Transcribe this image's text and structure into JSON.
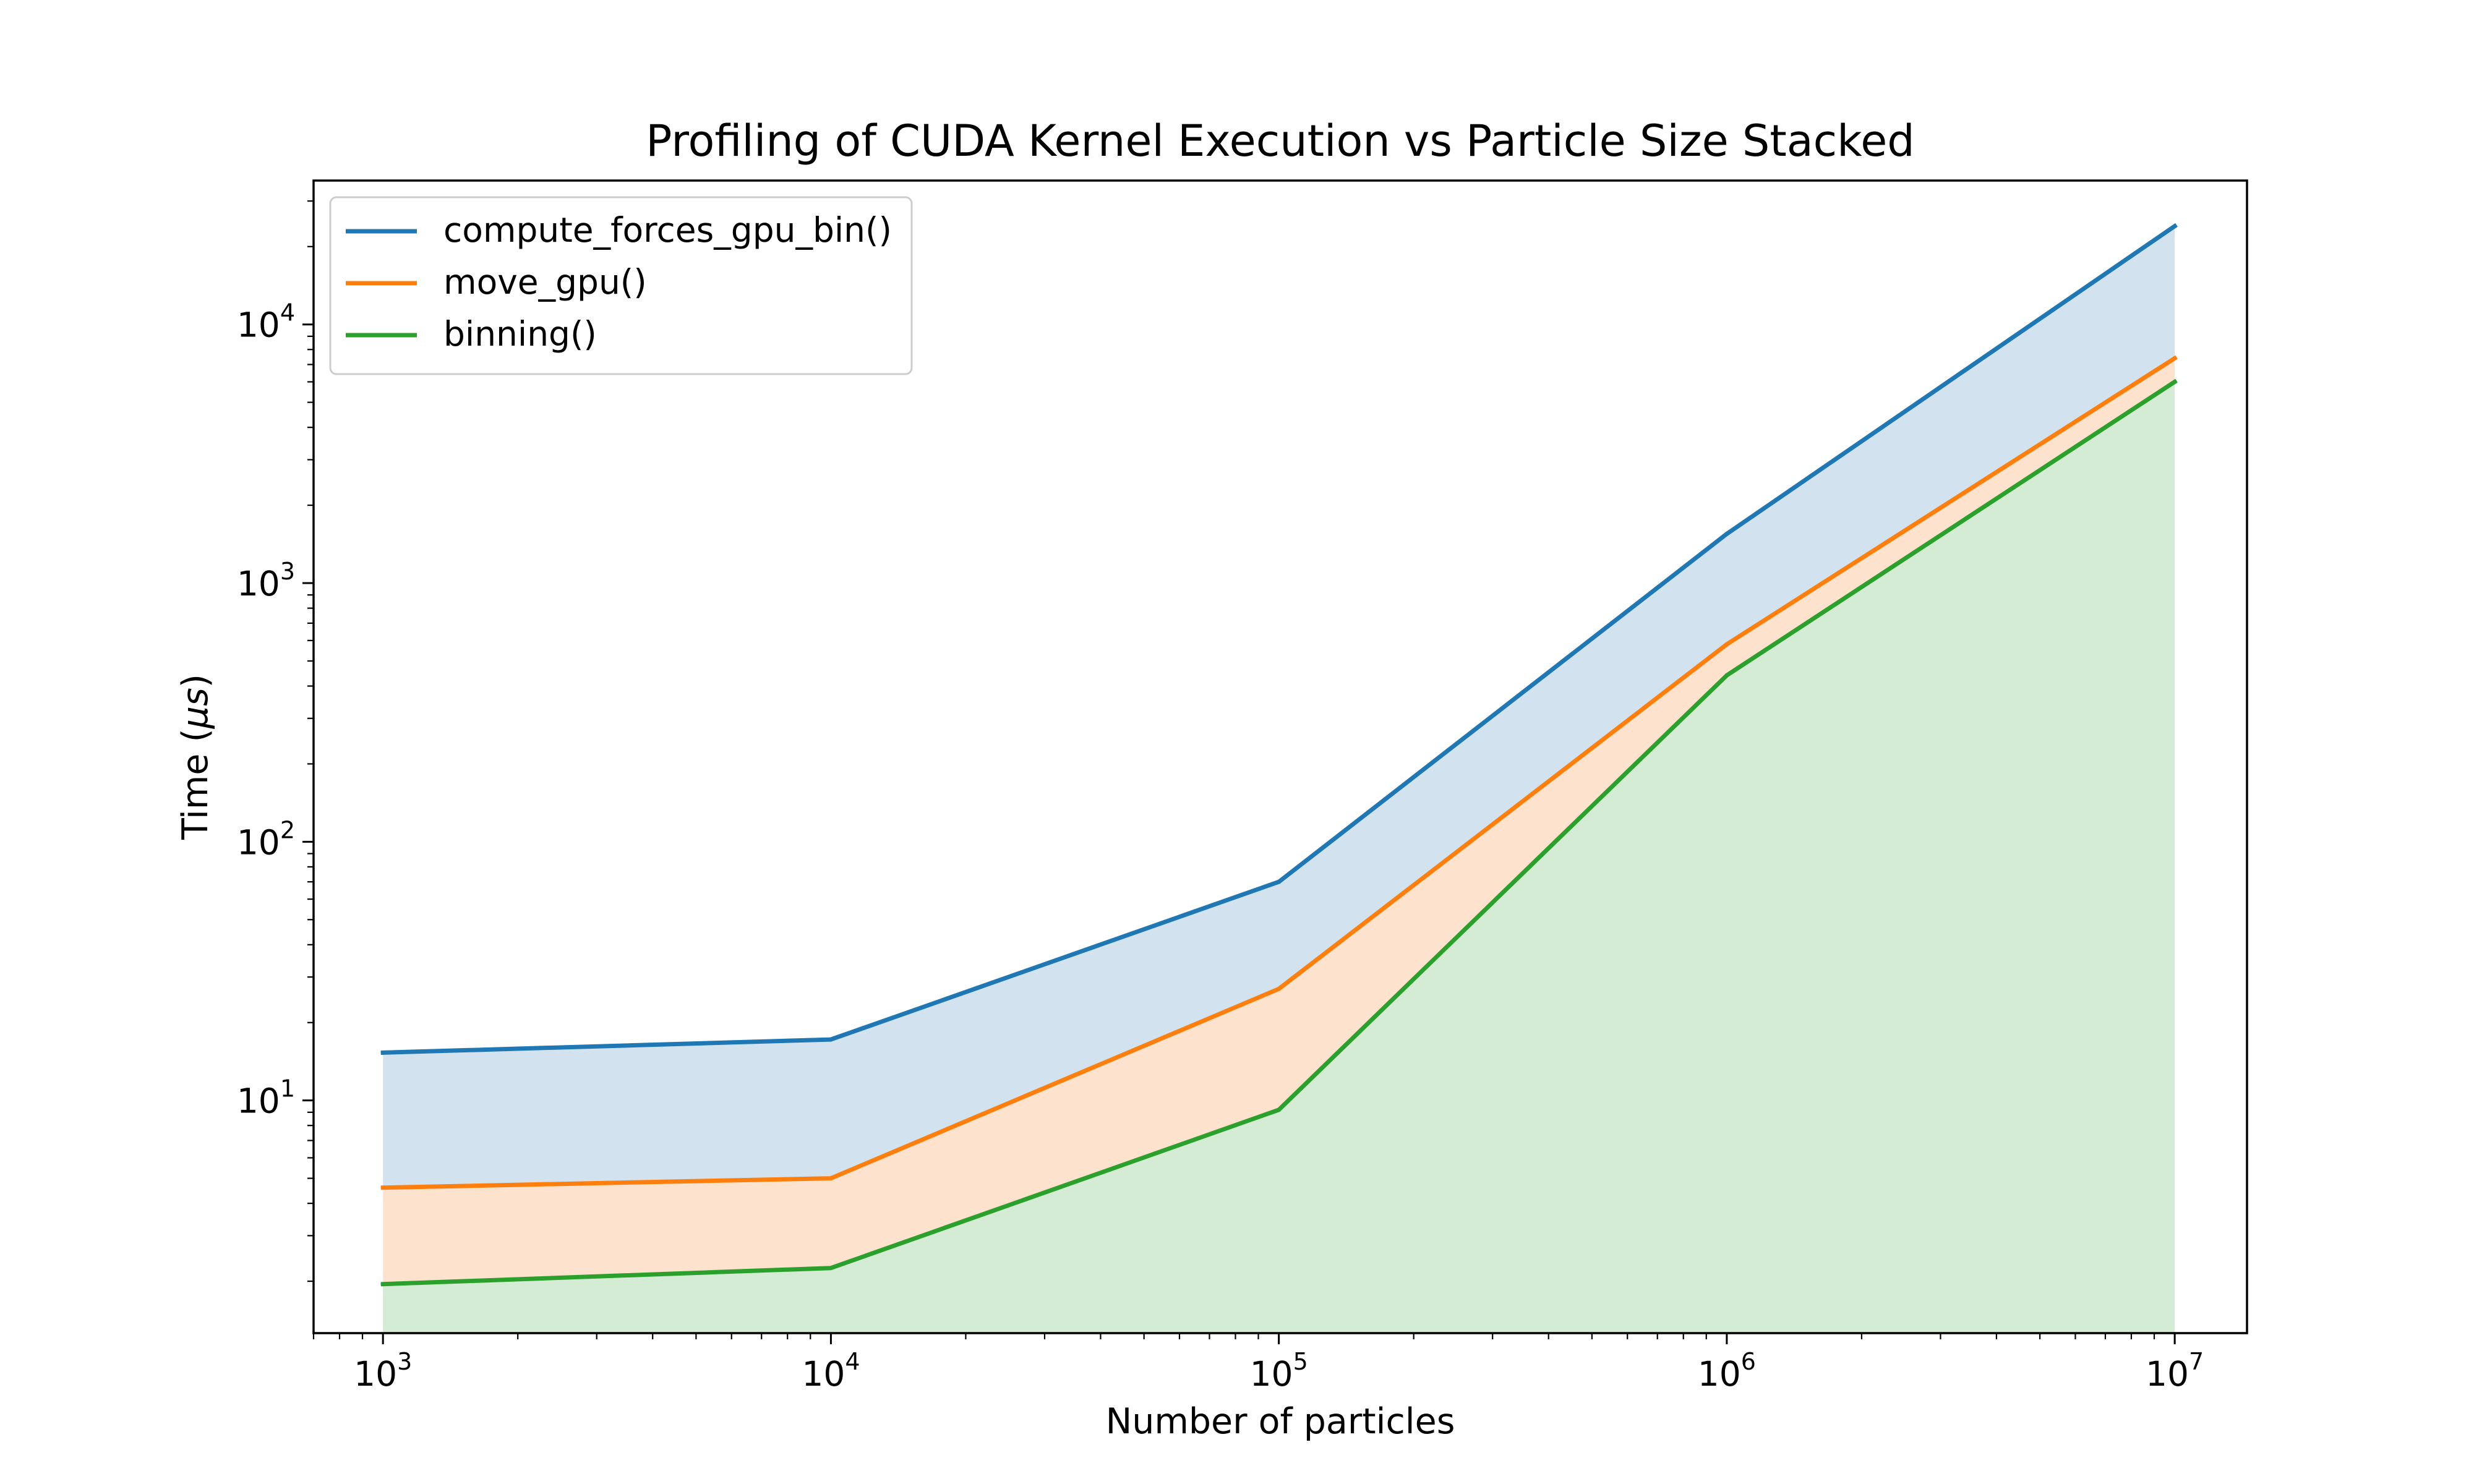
{
  "chart_data": {
    "type": "area",
    "title": "Profiling of CUDA Kernel Execution vs Particle Size Stacked",
    "xlabel": "Number of particles",
    "ylabel": "Time (μs)",
    "ylabel_parts": {
      "prefix": "Time (",
      "symbol": "μs",
      "suffix": ")"
    },
    "x_scale": "log",
    "y_scale": "log",
    "xlim": [
      700,
      14500000
    ],
    "ylim": [
      1.26,
      36000
    ],
    "x": [
      1000,
      10000,
      100000,
      1000000,
      10000000
    ],
    "x_ticks": [
      {
        "value": 1000,
        "base": "10",
        "exp": "3"
      },
      {
        "value": 10000,
        "base": "10",
        "exp": "4"
      },
      {
        "value": 100000,
        "base": "10",
        "exp": "5"
      },
      {
        "value": 1000000,
        "base": "10",
        "exp": "6"
      },
      {
        "value": 10000000,
        "base": "10",
        "exp": "7"
      }
    ],
    "y_ticks": [
      {
        "value": 10,
        "base": "10",
        "exp": "1"
      },
      {
        "value": 100,
        "base": "10",
        "exp": "2"
      },
      {
        "value": 1000,
        "base": "10",
        "exp": "3"
      },
      {
        "value": 10000,
        "base": "10",
        "exp": "4"
      }
    ],
    "series": [
      {
        "name": "compute_forces_gpu_bin()",
        "color": "#1f77b4",
        "fill": "#d2e3ef",
        "values": [
          15.3,
          17.2,
          70,
          1550,
          24000
        ]
      },
      {
        "name": "move_gpu()",
        "color": "#ff7f0e",
        "fill": "#fde3cd",
        "values": [
          4.6,
          5.0,
          27,
          580,
          7400
        ]
      },
      {
        "name": "binning()",
        "color": "#2ca02c",
        "fill": "#d4ebd4",
        "values": [
          1.95,
          2.25,
          9.2,
          440,
          6000
        ]
      }
    ],
    "legend_position": "upper left",
    "grid": false
  }
}
